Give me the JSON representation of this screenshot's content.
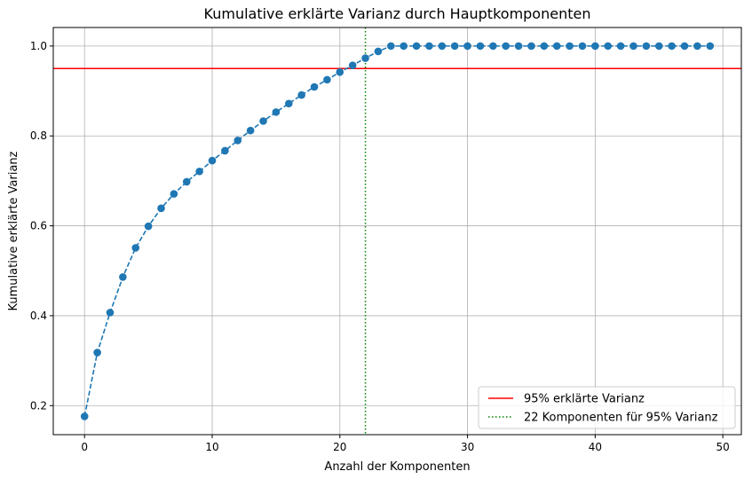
{
  "chart_data": {
    "type": "line",
    "title": "Kumulative erklärte Varianz durch Hauptkomponenten",
    "xlabel": "Anzahl der Komponenten",
    "ylabel": "Kumulative erklärte Varianz",
    "xlim": [
      -2.45,
      51.45
    ],
    "ylim": [
      0.1354,
      1.0412
    ],
    "xticks": [
      0,
      10,
      20,
      30,
      40,
      50
    ],
    "yticks": [
      0.2,
      0.4,
      0.6,
      0.8,
      1.0
    ],
    "xtick_labels": [
      "0",
      "10",
      "20",
      "30",
      "40",
      "50"
    ],
    "ytick_labels": [
      "0.2",
      "0.4",
      "0.6",
      "0.8",
      "1.0"
    ],
    "grid": true,
    "legend_position": "lower-right",
    "series": [
      {
        "style": "dashed line with circle markers",
        "color": "#1f77b4",
        "x": [
          0,
          1,
          2,
          3,
          4,
          5,
          6,
          7,
          8,
          9,
          10,
          11,
          12,
          13,
          14,
          15,
          16,
          17,
          18,
          19,
          20,
          21,
          22,
          23,
          24,
          25,
          26,
          27,
          28,
          29,
          30,
          31,
          32,
          33,
          34,
          35,
          36,
          37,
          38,
          39,
          40,
          41,
          42,
          43,
          44,
          45,
          46,
          47,
          48,
          49
        ],
        "y": [
          0.176,
          0.318,
          0.407,
          0.486,
          0.551,
          0.599,
          0.639,
          0.671,
          0.698,
          0.721,
          0.745,
          0.767,
          0.79,
          0.812,
          0.833,
          0.853,
          0.872,
          0.891,
          0.909,
          0.925,
          0.942,
          0.957,
          0.973,
          0.988,
          1.0,
          1.0,
          1.0,
          1.0,
          1.0,
          1.0,
          1.0,
          1.0,
          1.0,
          1.0,
          1.0,
          1.0,
          1.0,
          1.0,
          1.0,
          1.0,
          1.0,
          1.0,
          1.0,
          1.0,
          1.0,
          1.0,
          1.0,
          1.0,
          1.0,
          1.0
        ]
      }
    ],
    "reference_lines": [
      {
        "orientation": "horizontal",
        "value": 0.95,
        "color": "#ff0000",
        "style": "solid",
        "label": "95% erklärte Varianz"
      },
      {
        "orientation": "vertical",
        "value": 22,
        "color": "#008000",
        "style": "dotted",
        "label": "22 Komponenten für 95% Varianz"
      }
    ]
  }
}
